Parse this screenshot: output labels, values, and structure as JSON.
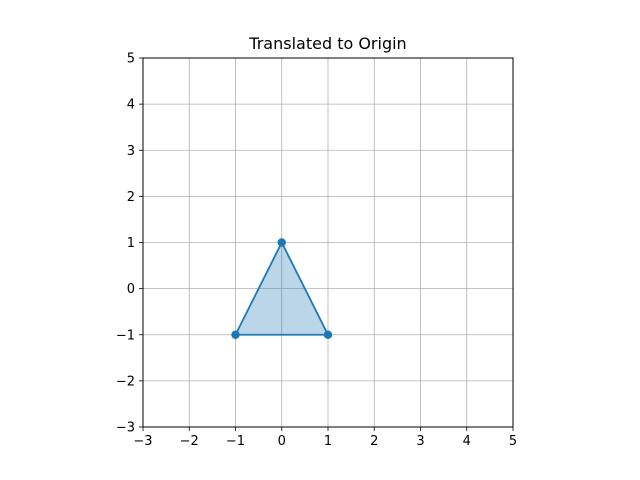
{
  "chart_data": {
    "type": "line",
    "title": "Translated to Origin",
    "xlabel": "",
    "ylabel": "",
    "xlim": [
      -3,
      5
    ],
    "ylim": [
      -3,
      5
    ],
    "x_ticks": [
      -3,
      -2,
      -1,
      0,
      1,
      2,
      3,
      4,
      5
    ],
    "y_ticks": [
      -3,
      -2,
      -1,
      0,
      1,
      2,
      3,
      4,
      5
    ],
    "x_tick_labels": [
      "−3",
      "−2",
      "−1",
      "0",
      "1",
      "2",
      "3",
      "4",
      "5"
    ],
    "y_tick_labels": [
      "−3",
      "−2",
      "−1",
      "0",
      "1",
      "2",
      "3",
      "4",
      "5"
    ],
    "grid": true,
    "series": [
      {
        "points": [
          {
            "x": -1,
            "y": -1
          },
          {
            "x": 0,
            "y": 1
          },
          {
            "x": 1,
            "y": -1
          }
        ],
        "closed": true,
        "filled": true,
        "color": "#1f77b4",
        "fill_color": "#1f77b4",
        "fill_opacity": 0.3,
        "marker": "circle"
      }
    ]
  }
}
